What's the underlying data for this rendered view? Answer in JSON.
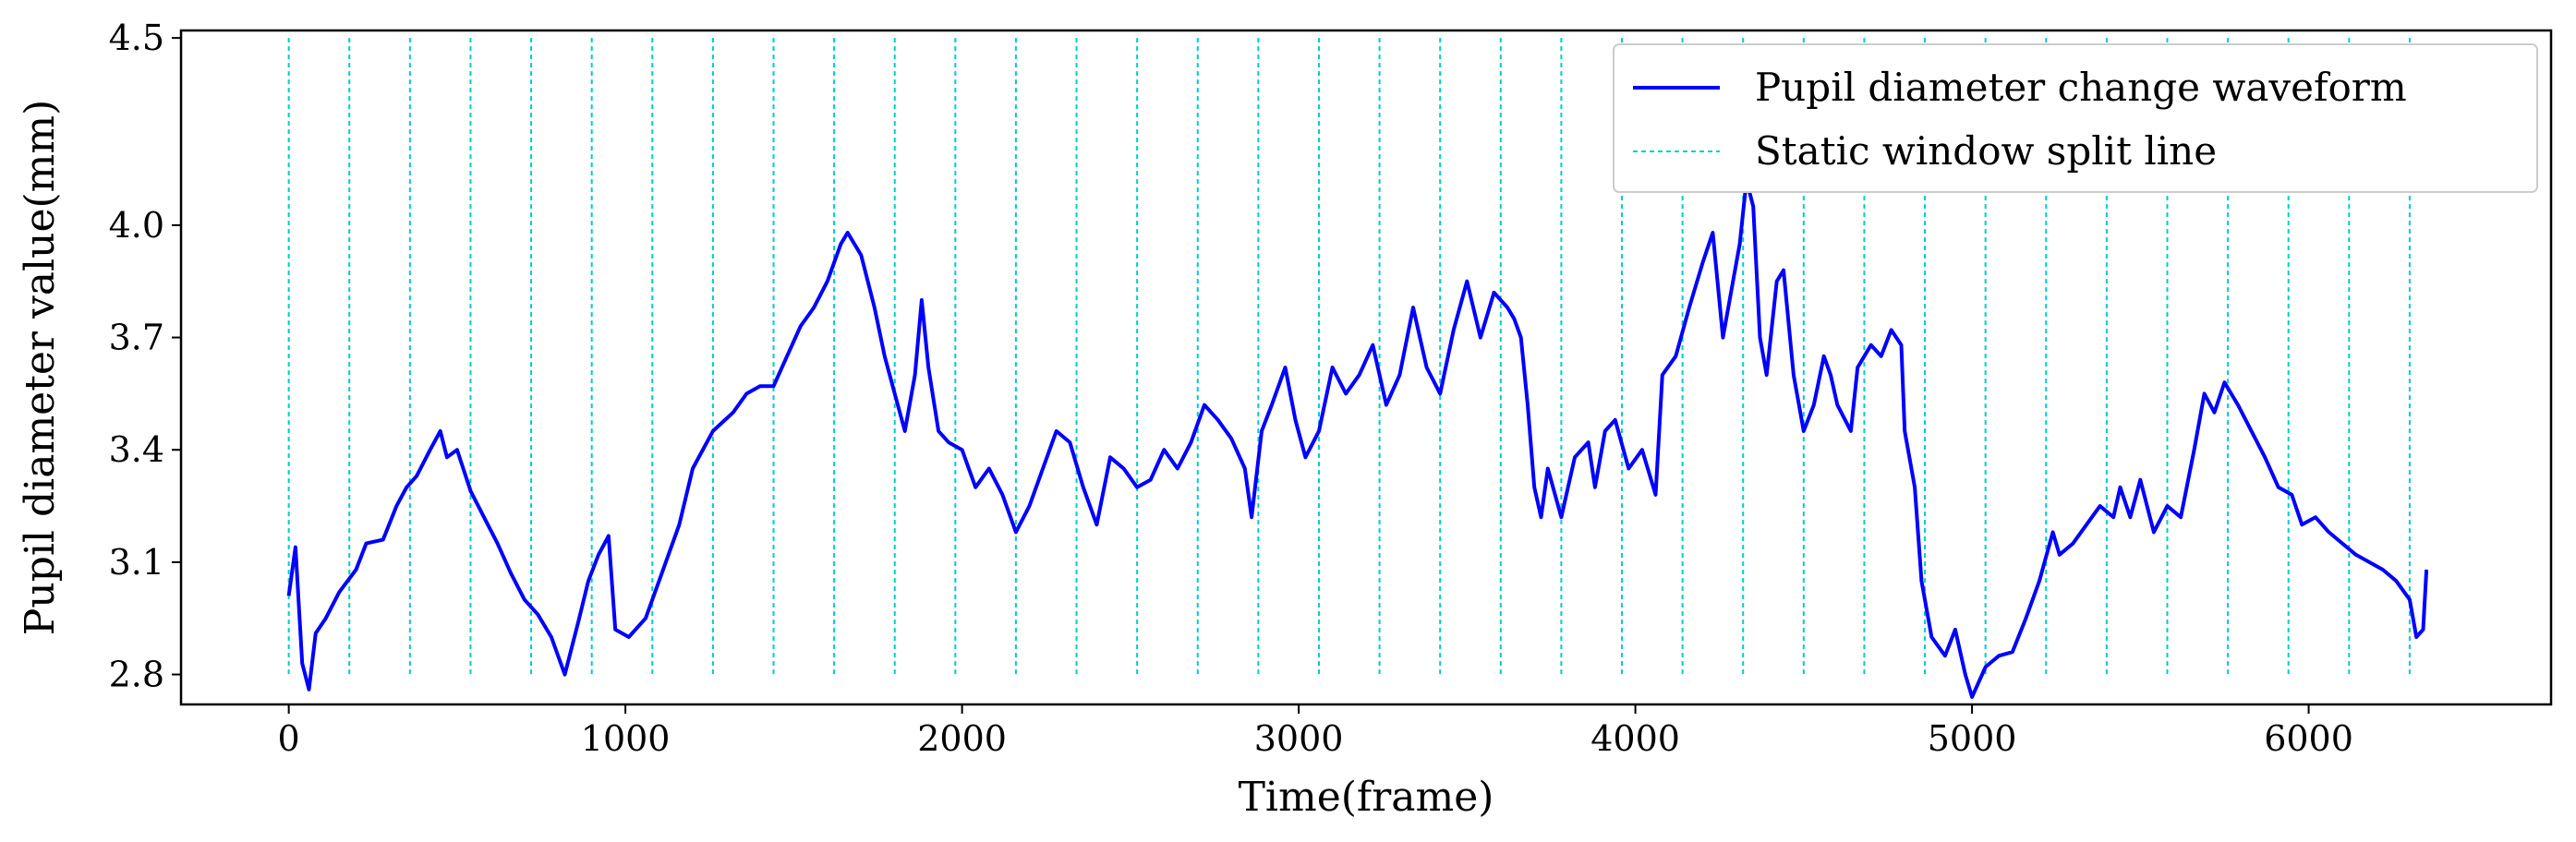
{
  "chart_data": {
    "type": "line",
    "title": "",
    "xlabel": "Time(frame)",
    "ylabel": "Pupil diameter value(mm)",
    "xlim": [
      -320,
      6720
    ],
    "ylim": [
      2.72,
      4.52
    ],
    "x_ticks": [
      0,
      1000,
      2000,
      3000,
      4000,
      5000,
      6000
    ],
    "x_tick_labels": [
      "0",
      "1000",
      "2000",
      "3000",
      "4000",
      "5000",
      "6000"
    ],
    "y_ticks": [
      2.8,
      3.1,
      3.4,
      3.7,
      4.0,
      4.5
    ],
    "y_tick_labels": [
      "2.8",
      "3.1",
      "3.4",
      "3.7",
      "4.0",
      "4.5"
    ],
    "grid": false,
    "legend_placement": "top-right",
    "series": [
      {
        "name": "Pupil diameter change waveform",
        "color": "#0000ff",
        "style": "solid",
        "points": [
          [
            0,
            3.01
          ],
          [
            20,
            3.14
          ],
          [
            40,
            2.83
          ],
          [
            60,
            2.76
          ],
          [
            80,
            2.91
          ],
          [
            110,
            2.95
          ],
          [
            150,
            3.02
          ],
          [
            200,
            3.08
          ],
          [
            230,
            3.15
          ],
          [
            280,
            3.16
          ],
          [
            320,
            3.25
          ],
          [
            350,
            3.3
          ],
          [
            380,
            3.33
          ],
          [
            420,
            3.4
          ],
          [
            450,
            3.45
          ],
          [
            470,
            3.38
          ],
          [
            500,
            3.4
          ],
          [
            540,
            3.29
          ],
          [
            580,
            3.22
          ],
          [
            620,
            3.15
          ],
          [
            660,
            3.07
          ],
          [
            700,
            3.0
          ],
          [
            740,
            2.96
          ],
          [
            780,
            2.9
          ],
          [
            820,
            2.8
          ],
          [
            860,
            2.94
          ],
          [
            890,
            3.05
          ],
          [
            920,
            3.12
          ],
          [
            950,
            3.17
          ],
          [
            970,
            2.92
          ],
          [
            1010,
            2.9
          ],
          [
            1060,
            2.95
          ],
          [
            1100,
            3.05
          ],
          [
            1160,
            3.2
          ],
          [
            1200,
            3.35
          ],
          [
            1260,
            3.45
          ],
          [
            1320,
            3.5
          ],
          [
            1360,
            3.55
          ],
          [
            1400,
            3.57
          ],
          [
            1440,
            3.57
          ],
          [
            1480,
            3.65
          ],
          [
            1520,
            3.73
          ],
          [
            1560,
            3.78
          ],
          [
            1600,
            3.85
          ],
          [
            1640,
            3.95
          ],
          [
            1660,
            3.98
          ],
          [
            1700,
            3.92
          ],
          [
            1740,
            3.78
          ],
          [
            1770,
            3.65
          ],
          [
            1800,
            3.55
          ],
          [
            1830,
            3.45
          ],
          [
            1860,
            3.6
          ],
          [
            1880,
            3.8
          ],
          [
            1900,
            3.62
          ],
          [
            1930,
            3.45
          ],
          [
            1960,
            3.42
          ],
          [
            2000,
            3.4
          ],
          [
            2040,
            3.3
          ],
          [
            2080,
            3.35
          ],
          [
            2120,
            3.28
          ],
          [
            2160,
            3.18
          ],
          [
            2200,
            3.25
          ],
          [
            2240,
            3.35
          ],
          [
            2280,
            3.45
          ],
          [
            2320,
            3.42
          ],
          [
            2360,
            3.3
          ],
          [
            2400,
            3.2
          ],
          [
            2440,
            3.38
          ],
          [
            2480,
            3.35
          ],
          [
            2520,
            3.3
          ],
          [
            2560,
            3.32
          ],
          [
            2600,
            3.4
          ],
          [
            2640,
            3.35
          ],
          [
            2680,
            3.42
          ],
          [
            2720,
            3.52
          ],
          [
            2760,
            3.48
          ],
          [
            2800,
            3.43
          ],
          [
            2840,
            3.35
          ],
          [
            2860,
            3.22
          ],
          [
            2890,
            3.45
          ],
          [
            2920,
            3.52
          ],
          [
            2960,
            3.62
          ],
          [
            2990,
            3.48
          ],
          [
            3020,
            3.38
          ],
          [
            3060,
            3.45
          ],
          [
            3100,
            3.62
          ],
          [
            3140,
            3.55
          ],
          [
            3180,
            3.6
          ],
          [
            3220,
            3.68
          ],
          [
            3260,
            3.52
          ],
          [
            3300,
            3.6
          ],
          [
            3340,
            3.78
          ],
          [
            3380,
            3.62
          ],
          [
            3420,
            3.55
          ],
          [
            3460,
            3.72
          ],
          [
            3500,
            3.85
          ],
          [
            3540,
            3.7
          ],
          [
            3580,
            3.82
          ],
          [
            3620,
            3.78
          ],
          [
            3640,
            3.75
          ],
          [
            3660,
            3.7
          ],
          [
            3680,
            3.52
          ],
          [
            3700,
            3.3
          ],
          [
            3720,
            3.22
          ],
          [
            3740,
            3.35
          ],
          [
            3780,
            3.22
          ],
          [
            3820,
            3.38
          ],
          [
            3860,
            3.42
          ],
          [
            3880,
            3.3
          ],
          [
            3910,
            3.45
          ],
          [
            3940,
            3.48
          ],
          [
            3980,
            3.35
          ],
          [
            4020,
            3.4
          ],
          [
            4060,
            3.28
          ],
          [
            4080,
            3.6
          ],
          [
            4120,
            3.65
          ],
          [
            4160,
            3.78
          ],
          [
            4200,
            3.9
          ],
          [
            4230,
            3.98
          ],
          [
            4260,
            3.7
          ],
          [
            4290,
            3.85
          ],
          [
            4310,
            3.95
          ],
          [
            4330,
            4.12
          ],
          [
            4350,
            4.05
          ],
          [
            4370,
            3.7
          ],
          [
            4390,
            3.6
          ],
          [
            4420,
            3.85
          ],
          [
            4440,
            3.88
          ],
          [
            4470,
            3.6
          ],
          [
            4500,
            3.45
          ],
          [
            4530,
            3.52
          ],
          [
            4560,
            3.65
          ],
          [
            4580,
            3.6
          ],
          [
            4600,
            3.52
          ],
          [
            4640,
            3.45
          ],
          [
            4660,
            3.62
          ],
          [
            4700,
            3.68
          ],
          [
            4730,
            3.65
          ],
          [
            4760,
            3.72
          ],
          [
            4790,
            3.68
          ],
          [
            4800,
            3.45
          ],
          [
            4830,
            3.3
          ],
          [
            4850,
            3.05
          ],
          [
            4880,
            2.9
          ],
          [
            4920,
            2.85
          ],
          [
            4950,
            2.92
          ],
          [
            4980,
            2.8
          ],
          [
            5000,
            2.74
          ],
          [
            5040,
            2.82
          ],
          [
            5080,
            2.85
          ],
          [
            5120,
            2.86
          ],
          [
            5160,
            2.95
          ],
          [
            5200,
            3.05
          ],
          [
            5240,
            3.18
          ],
          [
            5260,
            3.12
          ],
          [
            5300,
            3.15
          ],
          [
            5340,
            3.2
          ],
          [
            5380,
            3.25
          ],
          [
            5420,
            3.22
          ],
          [
            5440,
            3.3
          ],
          [
            5470,
            3.22
          ],
          [
            5500,
            3.32
          ],
          [
            5540,
            3.18
          ],
          [
            5580,
            3.25
          ],
          [
            5620,
            3.22
          ],
          [
            5660,
            3.4
          ],
          [
            5690,
            3.55
          ],
          [
            5720,
            3.5
          ],
          [
            5750,
            3.58
          ],
          [
            5790,
            3.52
          ],
          [
            5830,
            3.45
          ],
          [
            5870,
            3.38
          ],
          [
            5910,
            3.3
          ],
          [
            5950,
            3.28
          ],
          [
            5980,
            3.2
          ],
          [
            6020,
            3.22
          ],
          [
            6060,
            3.18
          ],
          [
            6100,
            3.15
          ],
          [
            6140,
            3.12
          ],
          [
            6180,
            3.1
          ],
          [
            6220,
            3.08
          ],
          [
            6260,
            3.05
          ],
          [
            6300,
            3.0
          ],
          [
            6320,
            2.9
          ],
          [
            6340,
            2.92
          ],
          [
            6350,
            3.08
          ]
        ]
      },
      {
        "name": "Static window split line",
        "color": "#00cccc",
        "style": "dashed",
        "type": "vlines",
        "x": [
          0,
          180,
          360,
          540,
          720,
          900,
          1080,
          1260,
          1440,
          1620,
          1800,
          1980,
          2160,
          2340,
          2520,
          2700,
          2880,
          3060,
          3240,
          3420,
          3600,
          3780,
          3960,
          4140,
          4320,
          4500,
          4680,
          4860,
          5040,
          5220,
          5400,
          5580,
          5760,
          5940,
          6120,
          6300
        ],
        "y_range": [
          2.8,
          4.5
        ]
      }
    ]
  }
}
